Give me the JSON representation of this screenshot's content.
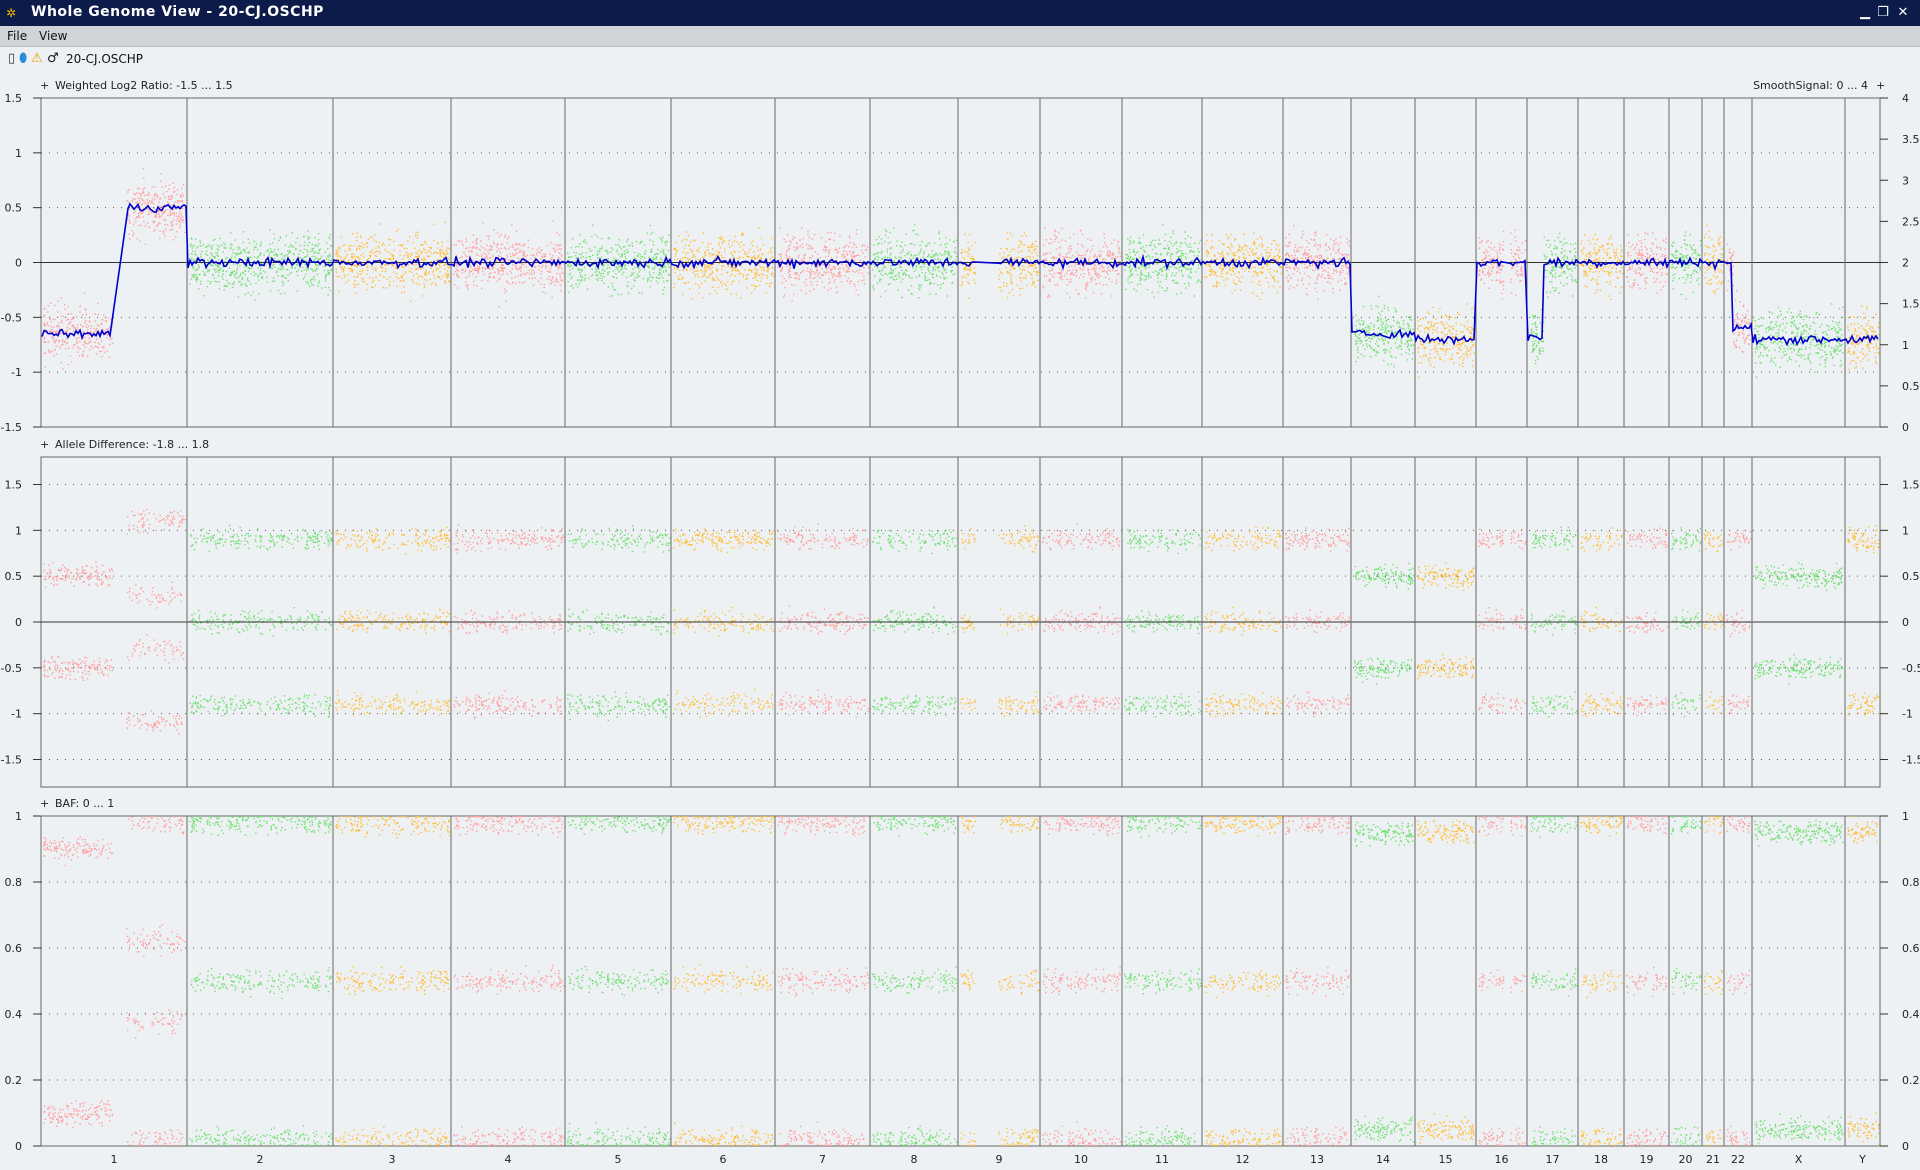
{
  "window": {
    "title": "Whole Genome View - 20-CJ.OSCHP"
  },
  "menu": {
    "items": [
      "File",
      "View"
    ]
  },
  "sample": {
    "name": "20-CJ.OSCHP"
  },
  "panels": {
    "log2": {
      "label": "Weighted Log2 Ratio: -1.5 ... 1.5",
      "right_label": "SmoothSignal: 0 ... 4",
      "ylim": [
        -1.5,
        1.5
      ],
      "ylim_right": [
        0,
        4
      ]
    },
    "allele": {
      "label": "Allele Difference: -1.8 ... 1.8",
      "ylim": [
        -1.8,
        1.8
      ]
    },
    "baf": {
      "label": "BAF: 0 ... 1",
      "ylim": [
        0,
        1
      ]
    }
  },
  "colors": {
    "red": "#ff9f9f",
    "green": "#72e072",
    "orange": "#ffbe3a",
    "smooth": "#0000cc"
  },
  "chart_data": [
    {
      "type": "scatter",
      "title": "Weighted Log2 Ratio: -1.5 ... 1.5",
      "ylim": [
        -1.5,
        1.5
      ],
      "ylim_right": [
        0,
        4
      ],
      "yticks_left": [
        "-1.5",
        "-1",
        "-0.5",
        "0",
        "0.5",
        "1",
        "1.5"
      ],
      "yticks_right": [
        "0",
        "0.5",
        "1",
        "1.5",
        "2",
        "2.5",
        "3",
        "3.5",
        "4"
      ],
      "grid": true,
      "categories": [
        "1",
        "2",
        "3",
        "4",
        "5",
        "6",
        "7",
        "8",
        "9",
        "10",
        "11",
        "12",
        "13",
        "14",
        "15",
        "16",
        "17",
        "18",
        "19",
        "20",
        "21",
        "22",
        "X",
        "Y"
      ],
      "series": [
        {
          "name": "SmoothSignal",
          "segments": [
            {
              "chrom": "1",
              "level": -0.65
            },
            {
              "chrom": "1",
              "level": 0.5
            },
            {
              "chrom": "2",
              "level": -0.05
            },
            {
              "chrom": "3",
              "level": 0.05
            },
            {
              "chrom": "4",
              "level": 0.0
            },
            {
              "chrom": "5",
              "level": -0.05
            },
            {
              "chrom": "6",
              "level": -0.05
            },
            {
              "chrom": "7",
              "level": -0.05
            },
            {
              "chrom": "8",
              "level": -0.02
            },
            {
              "chrom": "9",
              "level": 0.0
            },
            {
              "chrom": "10",
              "level": 0.0
            },
            {
              "chrom": "11",
              "level": -0.05
            },
            {
              "chrom": "12",
              "level": -0.03
            },
            {
              "chrom": "13",
              "level": -0.05
            },
            {
              "chrom": "14",
              "level": -0.65
            },
            {
              "chrom": "15",
              "level": -0.7
            },
            {
              "chrom": "16",
              "level": 0.0
            },
            {
              "chrom": "17",
              "level": -0.68
            },
            {
              "chrom": "17",
              "level": 0.0
            },
            {
              "chrom": "18",
              "level": 0.0
            },
            {
              "chrom": "19",
              "level": 0.0
            },
            {
              "chrom": "20",
              "level": 0.0
            },
            {
              "chrom": "21",
              "level": 0.0
            },
            {
              "chrom": "22",
              "level": 0.0
            },
            {
              "chrom": "22",
              "level": -0.6
            },
            {
              "chrom": "X",
              "level": -0.7
            },
            {
              "chrom": "Y",
              "level": -0.7
            }
          ]
        }
      ]
    },
    {
      "type": "scatter",
      "title": "Allele Difference: -1.8 ... 1.8",
      "ylim": [
        -1.8,
        1.8
      ],
      "yticks": [
        "-1.5",
        "-1",
        "-0.5",
        "0",
        "0.5",
        "1",
        "1.5"
      ],
      "grid": true,
      "categories": [
        "1",
        "2",
        "3",
        "4",
        "5",
        "6",
        "7",
        "8",
        "9",
        "10",
        "11",
        "12",
        "13",
        "14",
        "15",
        "16",
        "17",
        "18",
        "19",
        "20",
        "21",
        "22",
        "X",
        "Y"
      ]
    },
    {
      "type": "scatter",
      "title": "BAF: 0 ... 1",
      "ylim": [
        0,
        1
      ],
      "yticks": [
        "0",
        "0.2",
        "0.4",
        "0.6",
        "0.8",
        "1"
      ],
      "grid": true,
      "categories": [
        "1",
        "2",
        "3",
        "4",
        "5",
        "6",
        "7",
        "8",
        "9",
        "10",
        "11",
        "12",
        "13",
        "14",
        "15",
        "16",
        "17",
        "18",
        "19",
        "20",
        "21",
        "22",
        "X",
        "Y"
      ]
    }
  ]
}
